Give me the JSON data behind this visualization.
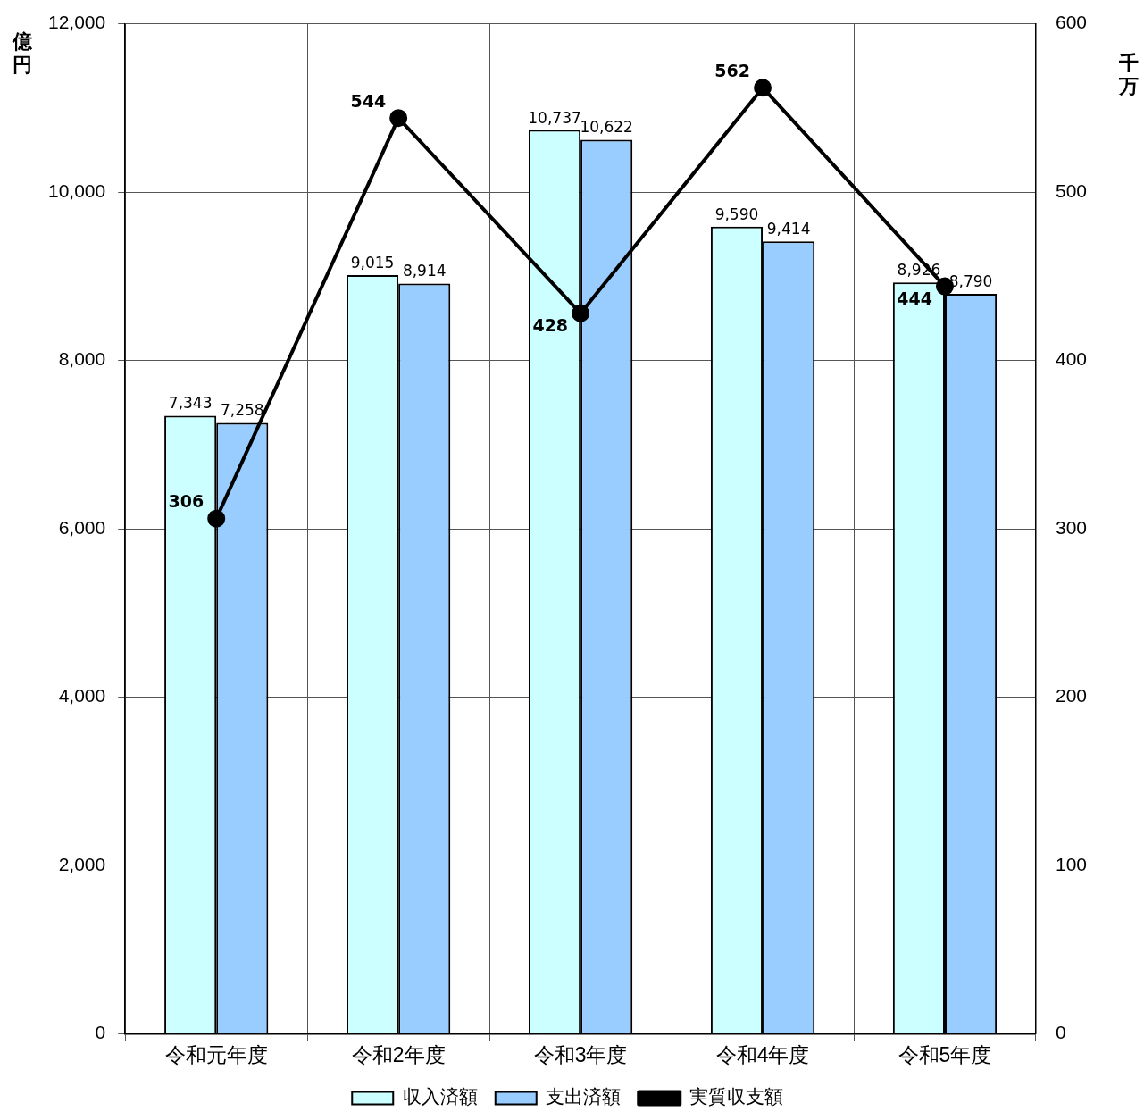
{
  "chart_data": {
    "type": "bar",
    "ylabel": "億円",
    "y2label": "千万",
    "categories": [
      "令和元年度",
      "令和2年度",
      "令和3年度",
      "令和4年度",
      "令和5年度"
    ],
    "series": [
      {
        "name": "収入済額",
        "color": "#ccffff",
        "values": [
          7343,
          9015,
          10737,
          9590,
          8926
        ],
        "value_labels": [
          "7,343",
          "9,015",
          "10,737",
          "9,590",
          "8,926"
        ]
      },
      {
        "name": "支出済額",
        "color": "#99ccff",
        "values": [
          7258,
          8914,
          10622,
          9414,
          8790
        ],
        "value_labels": [
          "7,258",
          "8,914",
          "10,622",
          "9,414",
          "8,790"
        ]
      },
      {
        "name": "実質収支額",
        "type": "line",
        "axis": "y2",
        "color": "#000000",
        "values": [
          306,
          544,
          428,
          562,
          444
        ],
        "value_labels": [
          "306",
          "544",
          "428",
          "562",
          "444"
        ]
      }
    ],
    "ylim": [
      0,
      12000
    ],
    "yticks": [
      0,
      {
        "value": 2000,
        "label": "2,000"
      },
      {
        "value": 4000,
        "label": "4,000"
      },
      {
        "value": 6000,
        "label": "6,000"
      },
      {
        "value": 8000,
        "label": "8,000"
      },
      {
        "value": 10000,
        "label": "10,000"
      },
      {
        "value": 12000,
        "label": "12,000"
      }
    ],
    "y2lim": [
      0,
      600
    ],
    "y2ticks": [
      0,
      100,
      200,
      300,
      400,
      500,
      600
    ],
    "grid": true,
    "legend": "bottom",
    "marker": "circle",
    "line_style": "solid"
  }
}
